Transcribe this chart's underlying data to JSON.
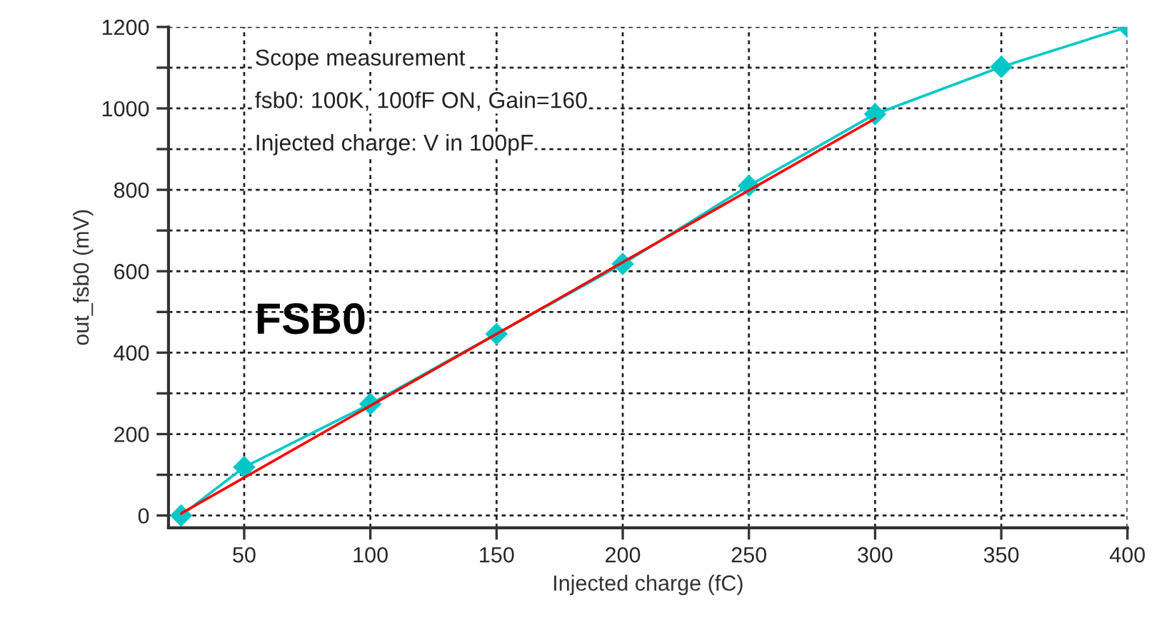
{
  "chart_data": {
    "type": "line",
    "xlabel": "Injected charge (fC)",
    "ylabel": "out_fsb0 (mV)",
    "x": [
      25,
      50,
      100,
      150,
      200,
      250,
      300,
      350,
      400
    ],
    "series": [
      {
        "color": "#00c8c8",
        "marker": "diamond",
        "values": [
          0,
          119,
          274,
          446,
          618,
          810,
          986,
          1102,
          1200
        ]
      },
      {
        "color": "#ff0000",
        "marker": "none",
        "x": [
          25,
          300
        ],
        "values": [
          5,
          975
        ]
      }
    ],
    "xlim": [
      20,
      400
    ],
    "xticks": [
      50,
      100,
      150,
      200,
      250,
      300,
      350,
      400
    ],
    "ylim": [
      -30,
      1200
    ],
    "yticks": [
      0,
      {
        "value": 100,
        "label": null
      },
      200,
      {
        "value": 300,
        "label": null
      },
      400,
      {
        "value": 500,
        "label": null
      },
      600,
      {
        "value": 700,
        "label": null
      },
      800,
      {
        "value": 900,
        "label": null
      },
      1000,
      {
        "value": 1100,
        "label": null
      },
      1200
    ],
    "grid": true,
    "legend": false,
    "annotations": [
      "Scope measurement",
      "fsb0: 100K, 100fF ON, Gain=160",
      "Injected charge: V in 100pF",
      "FSB0"
    ]
  }
}
